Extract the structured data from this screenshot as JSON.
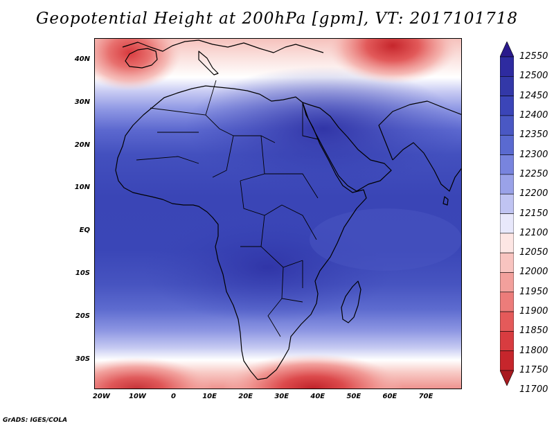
{
  "title": "Geopotential Height at 200hPa [gpm], VT: 2017101718",
  "credit": "GrADS: IGES/COLA",
  "map": {
    "lon_range": [
      -22,
      80
    ],
    "lat_range": [
      -37,
      45
    ],
    "lat_labels": [
      {
        "text": "40N",
        "lat": 40
      },
      {
        "text": "30N",
        "lat": 30
      },
      {
        "text": "20N",
        "lat": 20
      },
      {
        "text": "10N",
        "lat": 10
      },
      {
        "text": "EQ",
        "lat": 0
      },
      {
        "text": "10S",
        "lat": -10
      },
      {
        "text": "20S",
        "lat": -20
      },
      {
        "text": "30S",
        "lat": -30
      }
    ],
    "lon_labels": [
      {
        "text": "20W",
        "lon": -20
      },
      {
        "text": "10W",
        "lon": -10
      },
      {
        "text": "0",
        "lon": 0
      },
      {
        "text": "10E",
        "lon": 10
      },
      {
        "text": "20E",
        "lon": 20
      },
      {
        "text": "30E",
        "lon": 30
      },
      {
        "text": "40E",
        "lon": 40
      },
      {
        "text": "50E",
        "lon": 50
      },
      {
        "text": "60E",
        "lon": 60
      },
      {
        "text": "70E",
        "lon": 70
      }
    ]
  },
  "colorbar": {
    "labels": [
      "12550",
      "12500",
      "12450",
      "12400",
      "12350",
      "12300",
      "12250",
      "12200",
      "12150",
      "12100",
      "12050",
      "12000",
      "11950",
      "11900",
      "11850",
      "11800",
      "11750",
      "11700"
    ],
    "colors": [
      "#2a1a8c",
      "#2e2ba0",
      "#3338a8",
      "#3b45b8",
      "#4a58c4",
      "#5a6ad0",
      "#7884de",
      "#9aa2e8",
      "#c0c4f2",
      "#e8e8fb",
      "#fde6e4",
      "#f8c4c0",
      "#f2a09c",
      "#ec7c7a",
      "#e45a5a",
      "#d83c40",
      "#c6262c",
      "#a81a20"
    ]
  }
}
